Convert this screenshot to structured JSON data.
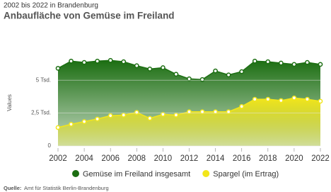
{
  "chart_data": {
    "type": "area",
    "subtitle": "2002 bis 2022 in Brandenburg",
    "title": "Anbaufläche von Gemüse im Freiland",
    "y_label": "Values",
    "source_label": "Quelle:",
    "source": "Amt für Statistik Berlin-Brandenburg",
    "x": [
      2002,
      2003,
      2004,
      2005,
      2006,
      2007,
      2008,
      2009,
      2010,
      2011,
      2012,
      2013,
      2014,
      2015,
      2016,
      2017,
      2018,
      2019,
      2020,
      2021,
      2022
    ],
    "xlim": [
      2002,
      2022
    ],
    "xticks": [
      2002,
      2004,
      2006,
      2008,
      2010,
      2012,
      2014,
      2016,
      2018,
      2020,
      2022
    ],
    "ylim": [
      0,
      7000
    ],
    "yticks": [
      0,
      {
        "value": 2500,
        "label": "2,5 Tsd."
      },
      {
        "value": 5000,
        "label": "5 Tsd."
      }
    ],
    "series": [
      {
        "name": "Gemüse im Freiland insgesamt",
        "color": "#1c6e12",
        "values": [
          5900,
          6450,
          6350,
          6450,
          6500,
          6400,
          6100,
          5850,
          5950,
          5450,
          5100,
          5050,
          5700,
          5400,
          5650,
          6450,
          6400,
          6300,
          6200,
          6350,
          6200
        ]
      },
      {
        "name": "Spargel (im Ertrag)",
        "color": "#f2e61b",
        "values": [
          1400,
          1650,
          1850,
          2050,
          2300,
          2350,
          2550,
          2100,
          2400,
          2350,
          2600,
          2600,
          2600,
          2600,
          3000,
          3550,
          3550,
          3450,
          3650,
          3550,
          3400
        ]
      }
    ]
  }
}
